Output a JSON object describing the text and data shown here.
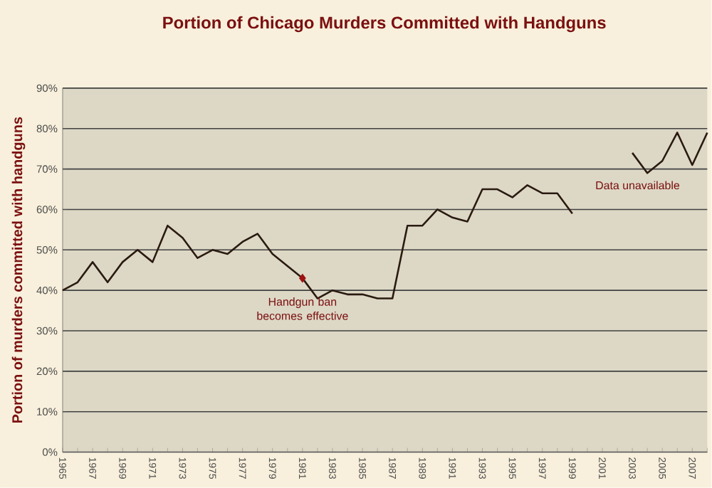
{
  "chart_data": {
    "type": "line",
    "title": "Portion of Chicago Murders Committed with Handguns",
    "ylabel": "Portion of murders committed with handguns",
    "categories": [
      "1965",
      null,
      "1967",
      null,
      "1969",
      null,
      "1971",
      null,
      "1973",
      null,
      "1975",
      null,
      "1977",
      null,
      "1979",
      null,
      "1981",
      null,
      "1983",
      null,
      "1985",
      null,
      "1987",
      null,
      "1989",
      null,
      "1991",
      null,
      "1993",
      null,
      "1995",
      null,
      "1997",
      null,
      "1999",
      null,
      "2001",
      null,
      "2003",
      null,
      "2005",
      null,
      "2007",
      null
    ],
    "series": [
      {
        "color": "#2a1a10",
        "values": [
          40,
          42,
          47,
          42,
          47,
          50,
          47,
          56,
          53,
          48,
          50,
          49,
          52,
          54,
          49,
          46,
          43,
          38,
          40,
          39,
          39,
          38,
          38,
          56,
          56,
          60,
          58,
          57,
          65,
          65,
          63,
          66,
          64,
          64,
          59,
          null,
          null,
          null,
          74,
          69,
          72,
          79,
          71,
          79
        ]
      },
      {
        "type": "scatter",
        "color": "#a01010",
        "marker": "diamond",
        "values": [
          null,
          null,
          null,
          null,
          null,
          null,
          null,
          null,
          null,
          null,
          null,
          null,
          null,
          null,
          null,
          null,
          43,
          null,
          null,
          null,
          null,
          null,
          null,
          null,
          null,
          null,
          null,
          null,
          null,
          null,
          null,
          null,
          null,
          null,
          null,
          null,
          null,
          null,
          null,
          null,
          null,
          null,
          null,
          null
        ]
      }
    ],
    "ylim": [
      0,
      90
    ],
    "yticks": [
      {
        "value": 0,
        "label": "0%"
      },
      {
        "value": 10,
        "label": "10%"
      },
      {
        "value": 20,
        "label": "20%"
      },
      {
        "value": 30,
        "label": "30%"
      },
      {
        "value": 40,
        "label": "40%"
      },
      {
        "value": 50,
        "label": "50%"
      },
      {
        "value": 60,
        "label": "60%"
      },
      {
        "value": 70,
        "label": "70%"
      },
      {
        "value": 80,
        "label": "80%"
      },
      {
        "value": 90,
        "label": "90%"
      }
    ],
    "grid": "y",
    "marker": "none",
    "annotations": [
      {
        "text": "Handgun ban becomes effective",
        "x": "1981",
        "y": 43
      },
      "Data unavailable"
    ]
  }
}
